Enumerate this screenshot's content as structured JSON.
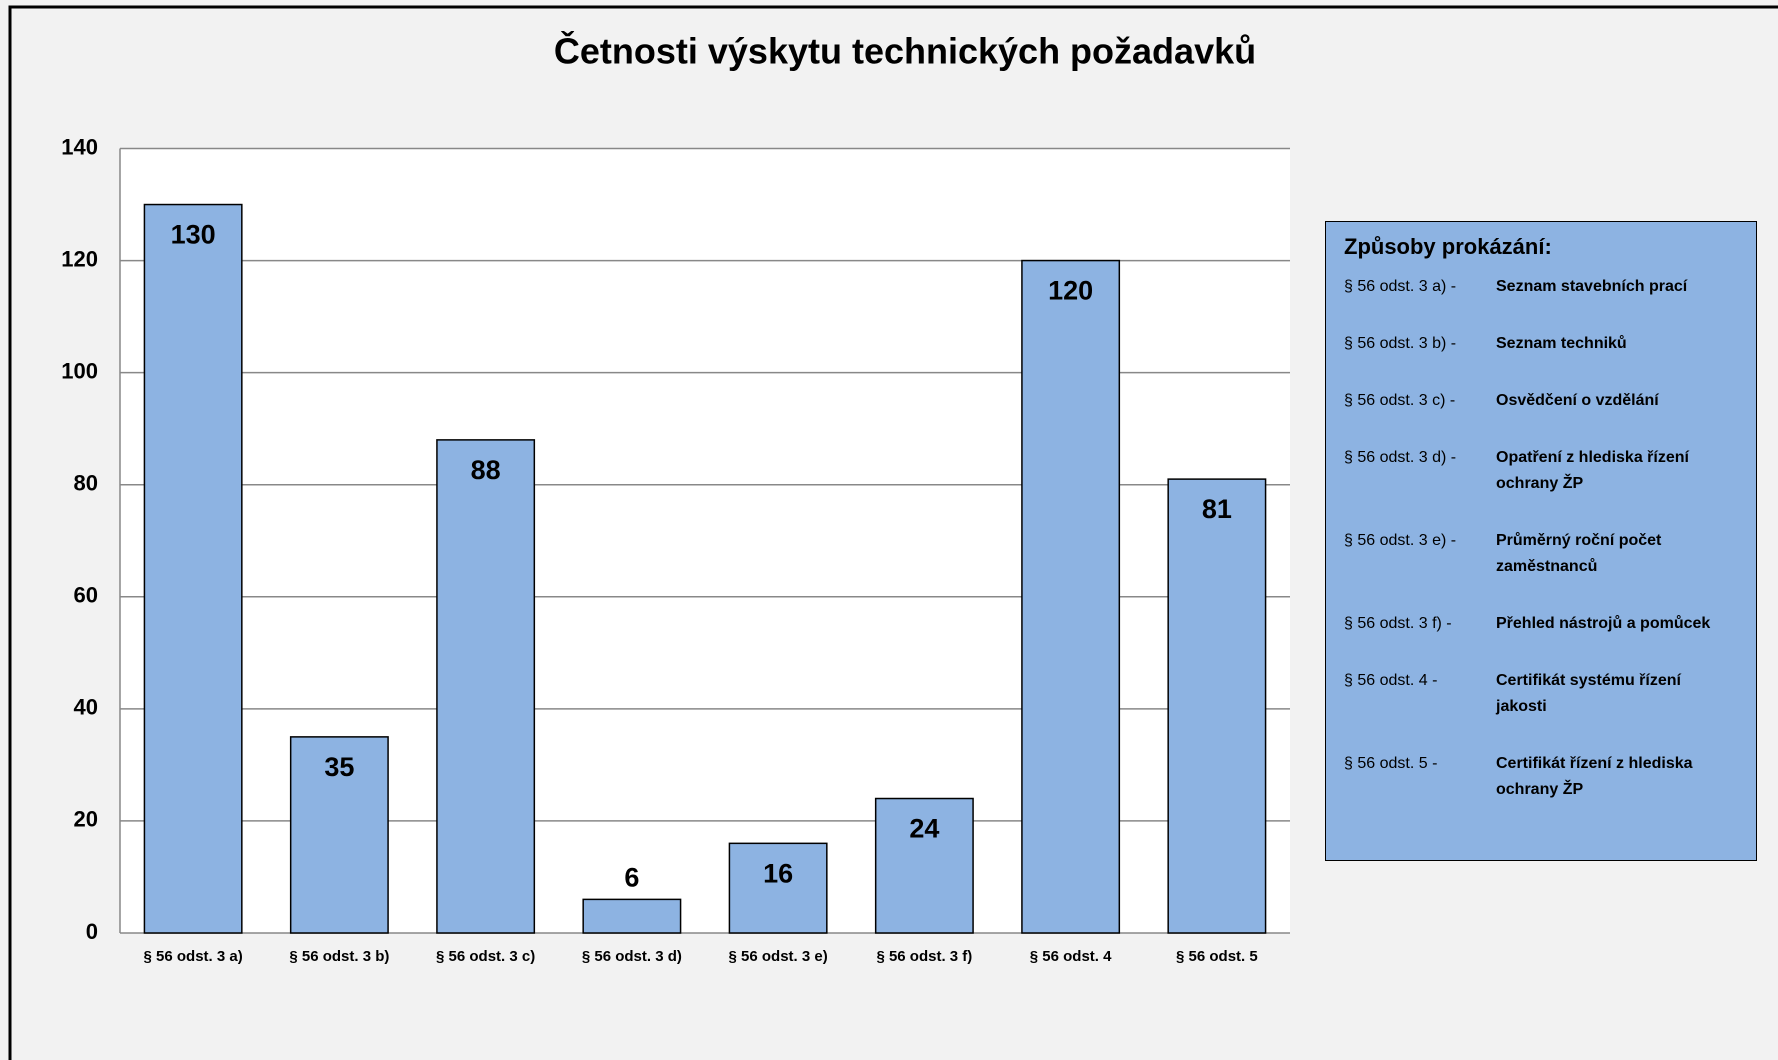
{
  "chart_data": {
    "type": "bar",
    "title": "Četnosti výskytu technických požadavků",
    "categories": [
      "§ 56 odst. 3 a)",
      "§ 56 odst. 3 b)",
      "§ 56 odst. 3 c)",
      "§ 56 odst. 3 d)",
      "§ 56 odst. 3 e)",
      "§ 56 odst. 3 f)",
      "§ 56 odst. 4",
      "§ 56 odst. 5"
    ],
    "values": [
      130,
      35,
      88,
      6,
      16,
      24,
      120,
      81
    ],
    "color": "#8db3e2",
    "ylim": [
      0,
      140
    ],
    "yticks": [
      0,
      20,
      40,
      60,
      80,
      100,
      120,
      140
    ],
    "grid": true,
    "legend": {
      "title": "Způsoby prokázání:",
      "items": [
        {
          "code": "§ 56 odst. 3 a) -",
          "text": "Seznam stavebních prací"
        },
        {
          "code": "§ 56 odst. 3 b) -",
          "text": "Seznam techniků"
        },
        {
          "code": "§ 56 odst. 3 c) -",
          "text": "Osvědčení o vzdělání"
        },
        {
          "code": "§ 56 odst. 3 d) -",
          "text": "Opatření z hlediska řízení ochrany ŽP"
        },
        {
          "code": "§ 56 odst. 3 e) -",
          "text": "Průměrný roční počet zaměstnanců"
        },
        {
          "code": "§ 56 odst. 3 f) -",
          "text": "Přehled nástrojů a pomůcek"
        },
        {
          "code": "§ 56 odst. 4 -",
          "text": "Certifikát systému řízení jakosti"
        },
        {
          "code": "§ 56 odst. 5 -",
          "text": "Certifikát řízení z hlediska ochrany ŽP"
        }
      ]
    }
  }
}
